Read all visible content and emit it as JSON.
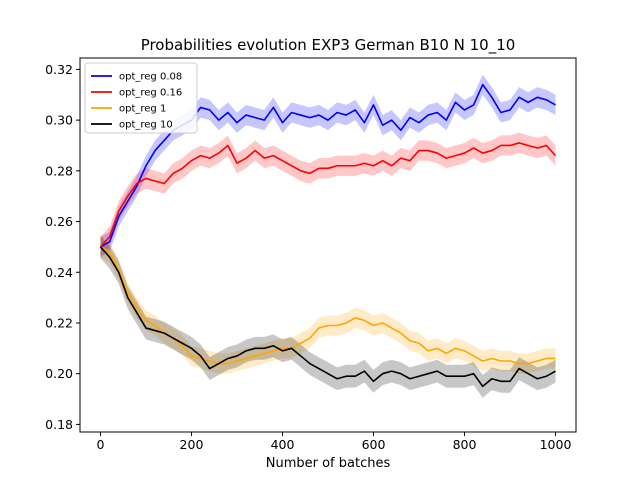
{
  "chart_data": {
    "type": "line",
    "title": "Probabilities evolution EXP3 German B10 N 10_10",
    "xlabel": "Number of batches",
    "ylabel": "",
    "xlim": [
      -45,
      1045
    ],
    "ylim": [
      0.177,
      0.3245
    ],
    "xticks": [
      0,
      200,
      400,
      600,
      800,
      1000
    ],
    "yticks": [
      0.18,
      0.2,
      0.22,
      0.24,
      0.26,
      0.28,
      0.3,
      0.32
    ],
    "ytick_labels": [
      "0.18",
      "0.20",
      "0.22",
      "0.24",
      "0.26",
      "0.28",
      "0.30",
      "0.32"
    ],
    "legend_position": "upper-left",
    "grid": false,
    "series": [
      {
        "name": "opt_reg 0.08",
        "color": "#0000ff",
        "band_color": "#0000ff",
        "x": [
          0,
          20,
          40,
          60,
          80,
          100,
          120,
          140,
          160,
          180,
          200,
          220,
          240,
          260,
          280,
          300,
          320,
          340,
          360,
          380,
          400,
          420,
          440,
          460,
          480,
          500,
          520,
          540,
          560,
          580,
          600,
          620,
          640,
          660,
          680,
          700,
          720,
          740,
          760,
          780,
          800,
          820,
          840,
          860,
          880,
          900,
          920,
          940,
          960,
          980,
          1000
        ],
        "y": [
          0.25,
          0.252,
          0.262,
          0.268,
          0.274,
          0.282,
          0.288,
          0.292,
          0.296,
          0.298,
          0.3,
          0.305,
          0.304,
          0.3,
          0.303,
          0.299,
          0.302,
          0.301,
          0.3,
          0.305,
          0.299,
          0.303,
          0.302,
          0.301,
          0.302,
          0.3,
          0.303,
          0.302,
          0.304,
          0.299,
          0.306,
          0.298,
          0.3,
          0.296,
          0.301,
          0.299,
          0.302,
          0.303,
          0.3,
          0.307,
          0.304,
          0.306,
          0.314,
          0.309,
          0.303,
          0.304,
          0.309,
          0.307,
          0.309,
          0.308,
          0.306
        ],
        "err": 0.004
      },
      {
        "name": "opt_reg 0.16",
        "color": "#ff0000",
        "band_color": "#ff0000",
        "x": [
          0,
          20,
          40,
          60,
          80,
          100,
          120,
          140,
          160,
          180,
          200,
          220,
          240,
          260,
          280,
          300,
          320,
          340,
          360,
          380,
          400,
          420,
          440,
          460,
          480,
          500,
          520,
          540,
          560,
          580,
          600,
          620,
          640,
          660,
          680,
          700,
          720,
          740,
          760,
          780,
          800,
          820,
          840,
          860,
          880,
          900,
          920,
          940,
          960,
          980,
          1000
        ],
        "y": [
          0.25,
          0.254,
          0.264,
          0.27,
          0.275,
          0.277,
          0.276,
          0.275,
          0.279,
          0.281,
          0.284,
          0.286,
          0.285,
          0.287,
          0.29,
          0.283,
          0.285,
          0.288,
          0.285,
          0.286,
          0.284,
          0.282,
          0.28,
          0.279,
          0.281,
          0.281,
          0.282,
          0.282,
          0.282,
          0.283,
          0.282,
          0.284,
          0.282,
          0.285,
          0.284,
          0.288,
          0.288,
          0.287,
          0.285,
          0.286,
          0.287,
          0.289,
          0.287,
          0.288,
          0.29,
          0.29,
          0.291,
          0.29,
          0.289,
          0.29,
          0.286
        ],
        "err": 0.004
      },
      {
        "name": "opt_reg 1",
        "color": "#ffa500",
        "band_color": "#ffa500",
        "x": [
          0,
          20,
          40,
          60,
          80,
          100,
          120,
          140,
          160,
          180,
          200,
          220,
          240,
          260,
          280,
          300,
          320,
          340,
          360,
          380,
          400,
          420,
          440,
          460,
          480,
          500,
          520,
          540,
          560,
          580,
          600,
          620,
          640,
          660,
          680,
          700,
          720,
          740,
          760,
          780,
          800,
          820,
          840,
          860,
          880,
          900,
          920,
          940,
          960,
          980,
          1000
        ],
        "y": [
          0.25,
          0.248,
          0.241,
          0.232,
          0.226,
          0.221,
          0.219,
          0.216,
          0.214,
          0.211,
          0.207,
          0.206,
          0.205,
          0.204,
          0.204,
          0.205,
          0.206,
          0.207,
          0.208,
          0.209,
          0.21,
          0.21,
          0.212,
          0.214,
          0.218,
          0.219,
          0.219,
          0.22,
          0.222,
          0.221,
          0.219,
          0.22,
          0.218,
          0.216,
          0.213,
          0.212,
          0.209,
          0.21,
          0.208,
          0.21,
          0.209,
          0.207,
          0.205,
          0.206,
          0.205,
          0.205,
          0.204,
          0.204,
          0.205,
          0.206,
          0.206
        ],
        "err": 0.004
      },
      {
        "name": "opt_reg 10",
        "color": "#000000",
        "band_color": "#000000",
        "x": [
          0,
          20,
          40,
          60,
          80,
          100,
          120,
          140,
          160,
          180,
          200,
          220,
          240,
          260,
          280,
          300,
          320,
          340,
          360,
          380,
          400,
          420,
          440,
          460,
          480,
          500,
          520,
          540,
          560,
          580,
          600,
          620,
          640,
          660,
          680,
          700,
          720,
          740,
          760,
          780,
          800,
          820,
          840,
          860,
          880,
          900,
          920,
          940,
          960,
          980,
          1000
        ],
        "y": [
          0.25,
          0.246,
          0.24,
          0.23,
          0.224,
          0.218,
          0.217,
          0.216,
          0.214,
          0.212,
          0.21,
          0.207,
          0.202,
          0.204,
          0.206,
          0.207,
          0.209,
          0.21,
          0.21,
          0.211,
          0.209,
          0.21,
          0.207,
          0.204,
          0.202,
          0.2,
          0.198,
          0.199,
          0.199,
          0.201,
          0.197,
          0.2,
          0.201,
          0.2,
          0.198,
          0.199,
          0.2,
          0.201,
          0.199,
          0.199,
          0.199,
          0.2,
          0.195,
          0.198,
          0.197,
          0.197,
          0.202,
          0.2,
          0.198,
          0.199,
          0.201
        ],
        "err": 0.0045
      }
    ]
  }
}
